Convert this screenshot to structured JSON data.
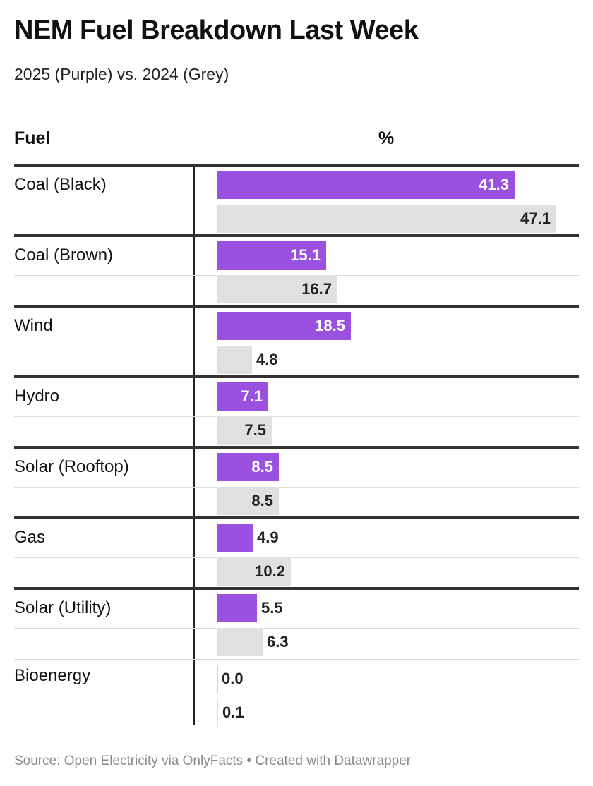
{
  "header": {
    "title": "NEM Fuel Breakdown Last Week",
    "subtitle": "2025 (Purple) vs. 2024 (Grey)"
  },
  "columns": {
    "fuel": "Fuel",
    "percent": "%"
  },
  "colors": {
    "series_2025": "#9b51e0",
    "series_2024": "#e0e0e0"
  },
  "chart_data": {
    "type": "bar",
    "orientation": "horizontal",
    "title": "NEM Fuel Breakdown Last Week",
    "subtitle": "2025 (Purple) vs. 2024 (Grey)",
    "categories": [
      "Coal (Black)",
      "Coal (Brown)",
      "Wind",
      "Hydro",
      "Solar (Rooftop)",
      "Gas",
      "Solar (Utility)",
      "Bioenergy"
    ],
    "series": [
      {
        "values": [
          41.3,
          15.1,
          18.5,
          7.1,
          8.5,
          4.9,
          5.5,
          0.0
        ],
        "labels": [
          "41.3",
          "15.1",
          "18.5",
          "7.1",
          "8.5",
          "4.9",
          "5.5",
          "0.0"
        ],
        "color": "#9b51e0"
      },
      {
        "values": [
          47.1,
          16.7,
          4.8,
          7.5,
          8.5,
          10.2,
          6.3,
          0.1
        ],
        "labels": [
          "47.1",
          "16.7",
          "4.8",
          "7.5",
          "8.5",
          "10.2",
          "6.3",
          "0.1"
        ],
        "color": "#e0e0e0"
      }
    ],
    "xlim": [
      0,
      48
    ],
    "grid": false
  },
  "footer": {
    "source": "Source: Open Electricity via OnlyFacts • Created with Datawrapper"
  }
}
